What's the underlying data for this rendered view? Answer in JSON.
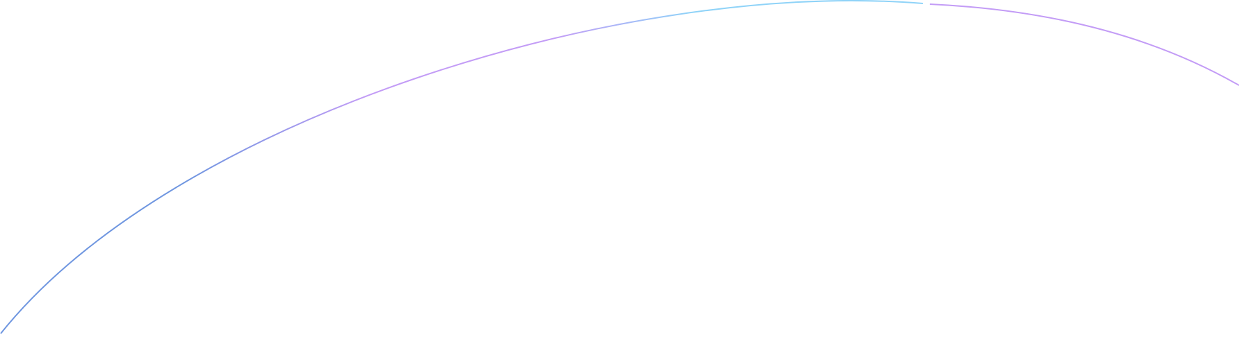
{
  "colors": {
    "background": "#ffffff",
    "curve_blue": "#6f96e0",
    "curve_purple": "#c39cf6",
    "curve_light_blue": "#8fd3f8"
  }
}
